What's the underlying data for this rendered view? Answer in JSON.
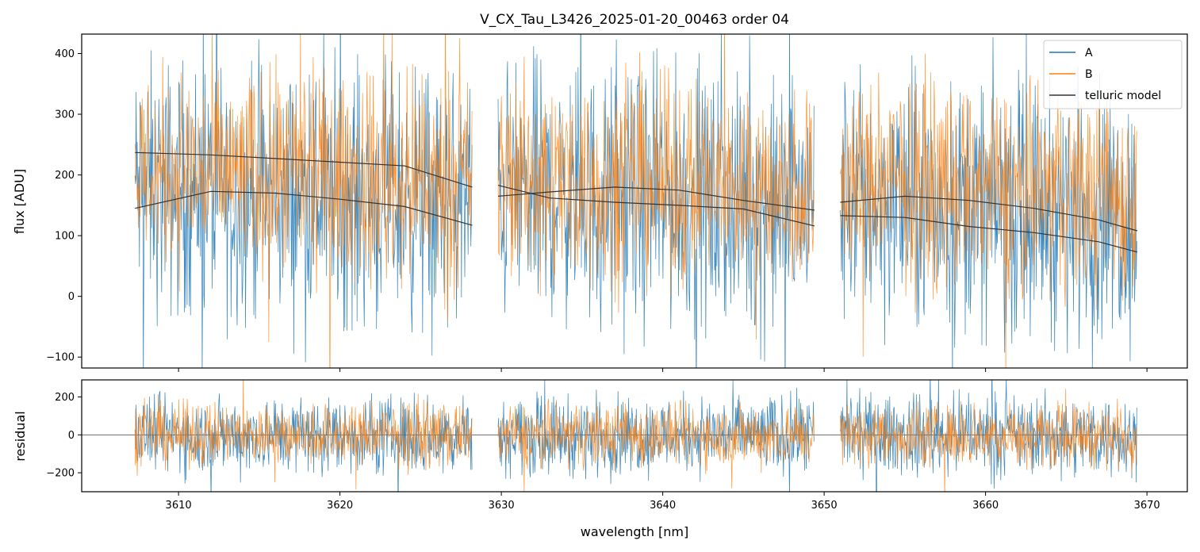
{
  "chart_data": {
    "type": "line",
    "title": "V_CX_Tau_L3426_2025-01-20_00463  order 04",
    "xlabel": "wavelength [nm]",
    "xlim": [
      3604,
      3672.5
    ],
    "x_ticks": [
      3610,
      3620,
      3630,
      3640,
      3650,
      3660,
      3670
    ],
    "x_tick_labels": [
      "3610",
      "3620",
      "3630",
      "3640",
      "3650",
      "3660",
      "3670"
    ],
    "legend_position": "top-right",
    "colors": {
      "A": "#1f77b4",
      "B": "#ff7f0e",
      "telluric": "#333333"
    },
    "segments_nm": [
      [
        3607.3,
        3628.2
      ],
      [
        3629.8,
        3649.4
      ],
      [
        3651.0,
        3669.4
      ]
    ],
    "panels": [
      {
        "name": "flux",
        "ylabel": "flux [ADU]",
        "ylim": [
          -118,
          432
        ],
        "y_ticks": [
          -100,
          0,
          100,
          200,
          300,
          400
        ],
        "y_tick_labels": [
          "−100",
          "0",
          "100",
          "200",
          "300",
          "400"
        ],
        "series": [
          {
            "name": "A",
            "center": 155,
            "noise_amplitude": 150
          },
          {
            "name": "B",
            "center": 185,
            "noise_amplitude": 120
          }
        ],
        "models": [
          {
            "name": "telluric model",
            "x": [
              3607.3,
              3612,
              3616,
              3620,
              3624,
              3628.2,
              3629.8,
              3633,
              3637,
              3641,
              3645,
              3649.4,
              3651.0,
              3655,
              3659,
              3663,
              3667,
              3669.4
            ],
            "y": [
              237,
              233,
              227,
              221,
              215,
              180,
              183,
              162,
              155,
              150,
              144,
              116,
              155,
              165,
              158,
              145,
              126,
              108
            ]
          },
          {
            "name": "telluric model lower",
            "x": [
              3607.3,
              3612,
              3616,
              3620,
              3624,
              3628.2,
              3629.8,
              3633,
              3637,
              3641,
              3645,
              3649.4,
              3651.0,
              3655,
              3659,
              3663,
              3667,
              3669.4
            ],
            "y": [
              145,
              173,
              170,
              160,
              148,
              117,
              165,
              172,
              180,
              175,
              158,
              142,
              133,
              130,
              115,
              105,
              90,
              73
            ]
          }
        ]
      },
      {
        "name": "residual",
        "ylabel": "residual",
        "ylim": [
          -300,
          290
        ],
        "y_ticks": [
          -200,
          0,
          200
        ],
        "y_tick_labels": [
          "−200",
          "0",
          "200"
        ],
        "zero_line": 0,
        "series": [
          {
            "name": "A",
            "center": 0,
            "noise_amplitude": 150
          },
          {
            "name": "B",
            "center": 0,
            "noise_amplitude": 120
          }
        ]
      }
    ],
    "legend": [
      {
        "label": "A",
        "color": "#1f77b4"
      },
      {
        "label": "B",
        "color": "#ff7f0e"
      },
      {
        "label": "telluric model",
        "color": "#333333"
      }
    ]
  }
}
